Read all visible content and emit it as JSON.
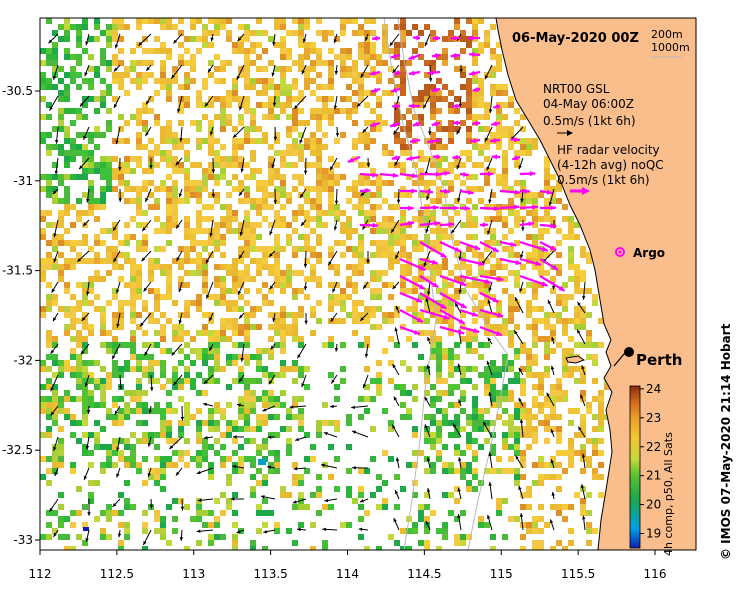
{
  "map": {
    "title": "06-May-2020 00Z",
    "bathymetry": {
      "line1": "200m",
      "line2": "1000m"
    },
    "model_legend": {
      "line1": "NRT00 GSL",
      "line2": "04-May 06:00Z",
      "line3": "0.5m/s (1kt 6h)"
    },
    "radar_legend": {
      "line1": "HF radar velocity",
      "line2": "(4-12h avg) noQC",
      "line3": "0.5m/s (1kt 6h)"
    },
    "argo_label": "Argo",
    "city_label": "Perth",
    "credit": "© IMOS 07-May-2020 21:14 Hobart",
    "colorbar": {
      "label": "4h comp, p50, All Sats",
      "ticks": [
        "24",
        "23",
        "22",
        "21",
        "20",
        "19"
      ],
      "min": 18.5,
      "max": 24.1
    },
    "x_ticks": [
      "112",
      "112.5",
      "113",
      "113.5",
      "114",
      "114.5",
      "115",
      "115.5",
      "116"
    ],
    "y_ticks": [
      "-30.5",
      "-31",
      "-31.5",
      "-32",
      "-32.5",
      "-33"
    ],
    "lon_range": [
      112,
      116.3
    ],
    "lat_range": [
      -33.1,
      -30.0
    ],
    "colors": {
      "land": "#f9be8c",
      "arrow_model": "#000000",
      "arrow_radar": "#ff00ff",
      "argo": "#ff00ff"
    }
  }
}
